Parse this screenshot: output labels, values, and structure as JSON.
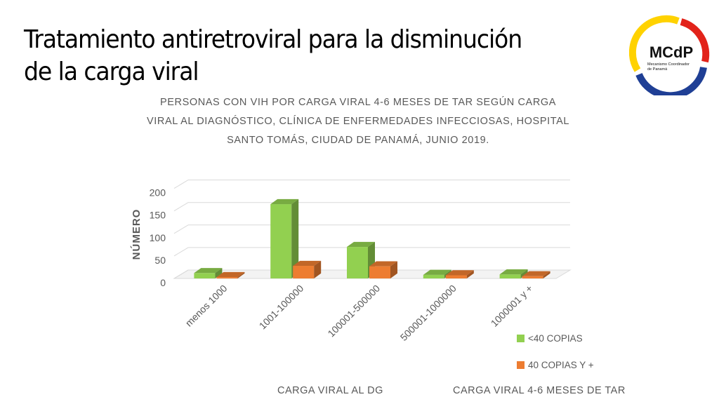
{
  "slide": {
    "title_line1": "Tratamiento antiretroviral para la disminución",
    "title_line2": "de la carga viral"
  },
  "logo": {
    "text": "MCdP",
    "subtext_line1": "Mecanismo Coordinador",
    "subtext_line2": "de Panamá",
    "colors": {
      "yellow": "#FFD200",
      "red": "#E2231A",
      "blue": "#1F3F95"
    }
  },
  "chart_data": {
    "type": "bar",
    "title_lines": [
      "PERSONAS CON VIH POR CARGA VIRAL 4-6 MESES DE TAR SEGÚN CARGA",
      "VIRAL AL DIAGNÓSTICO, CLÍNICA DE ENFERMEDADES INFECCIOSAS, HOSPITAL",
      "SANTO TOMÁS, CIUDAD DE PANAMÁ, JUNIO 2019."
    ],
    "ylabel": "NÚMERO",
    "xlabel": "CARGA VIRAL AL DG",
    "legend_title": "CARGA VIRAL 4-6 MESES DE TAR",
    "legend_position": "bottom-right",
    "categories": [
      "menos 1000",
      "1001-100000",
      "100001-500000",
      "500001-1000000",
      "1000001 y +"
    ],
    "series": [
      {
        "name": "<40 COPIAS",
        "color": "#92D050",
        "values": [
          12,
          165,
          70,
          8,
          9
        ]
      },
      {
        "name": "40 COPIAS Y +",
        "color": "#ED7D31",
        "values": [
          3,
          28,
          27,
          7,
          5
        ]
      }
    ],
    "yticks": [
      0,
      50,
      100,
      150,
      200
    ],
    "ylim": [
      0,
      200
    ],
    "grid": true,
    "style": "3d"
  }
}
